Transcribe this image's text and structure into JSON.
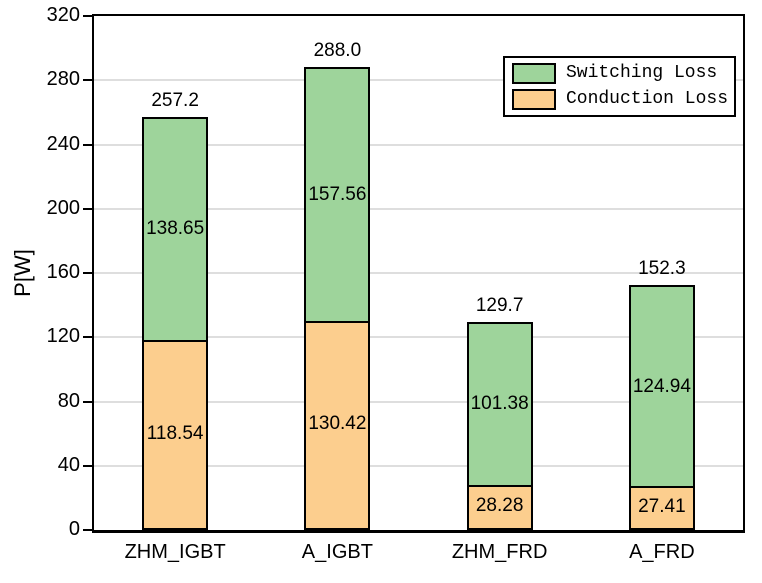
{
  "chart_data": {
    "type": "bar",
    "stacked": true,
    "title": "",
    "xlabel": "",
    "ylabel": "P[W]",
    "ylim": [
      0,
      320
    ],
    "ytick_step": 40,
    "ytick_labels": [
      "0",
      "40",
      "80",
      "120",
      "160",
      "200",
      "240",
      "280",
      "320"
    ],
    "grid": "horizontal",
    "categories": [
      "ZHM_IGBT",
      "A_IGBT",
      "ZHM_FRD",
      "A_FRD"
    ],
    "series": [
      {
        "name": "Conduction Loss",
        "color": "#FCCE8E",
        "values": [
          118.54,
          130.42,
          28.28,
          27.41
        ],
        "labels": [
          "118.54",
          "130.42",
          "28.28",
          "27.41"
        ]
      },
      {
        "name": "Switching Loss",
        "color": "#9ED49B",
        "values": [
          138.65,
          157.56,
          101.38,
          124.94
        ],
        "labels": [
          "138.65",
          "157.56",
          "101.38",
          "124.94"
        ]
      }
    ],
    "totals": [
      "257.2",
      "288.0",
      "129.7",
      "152.3"
    ],
    "legend": {
      "position": "top-right",
      "entries": [
        "Switching Loss",
        "Conduction Loss"
      ]
    },
    "colors": {
      "axis": "#000000",
      "gridline": "#DEDEDE",
      "bar_border": "#000000",
      "switching_loss": "#9ED49B",
      "conduction_loss": "#FCCE8E"
    }
  }
}
